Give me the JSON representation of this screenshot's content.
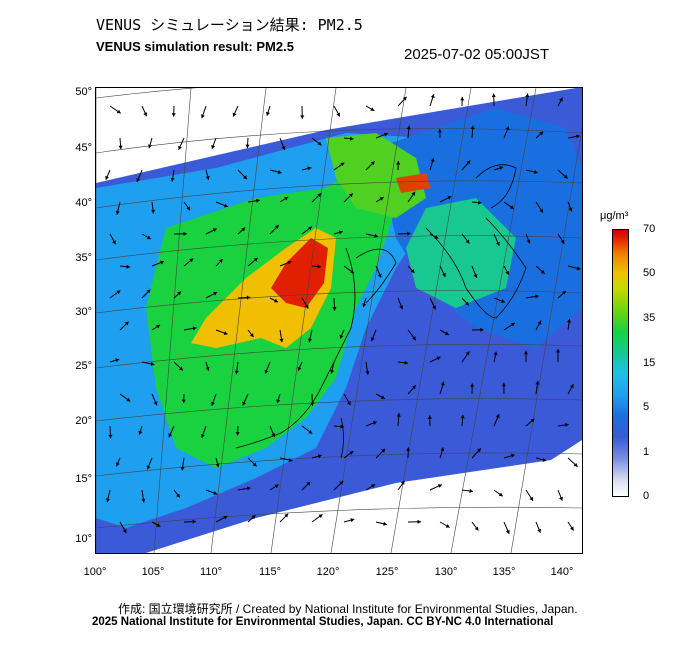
{
  "header": {
    "title_ja": "VENUS シミュレーション結果: PM2.5",
    "title_en": "VENUS simulation result: PM2.5",
    "datetime": "2025-07-02 05:00JST"
  },
  "map": {
    "latitude_ticks": [
      "50°",
      "45°",
      "40°",
      "35°",
      "30°",
      "25°",
      "20°",
      "15°",
      "10°"
    ],
    "longitude_ticks": [
      "100°",
      "105°",
      "110°",
      "115°",
      "120°",
      "125°",
      "130°",
      "135°",
      "140°"
    ],
    "colors": {
      "very_low": "#3a5ad8",
      "low": "#1f9ff0",
      "mid": "#1ad240",
      "high": "#f0c000",
      "very_high": "#e02000",
      "wind_arrow": "#000000"
    }
  },
  "colorbar": {
    "unit": "μg/m³",
    "ticks": [
      "70",
      "50",
      "35",
      "15",
      "5",
      "1",
      "0"
    ]
  },
  "footer": {
    "credit": "作成: 国立環境研究所 / Created by National Institute for Environmental Studies, Japan.",
    "copyright": "2025 National Institute for Environmental Studies, Japan. CC BY-NC 4.0 International"
  }
}
